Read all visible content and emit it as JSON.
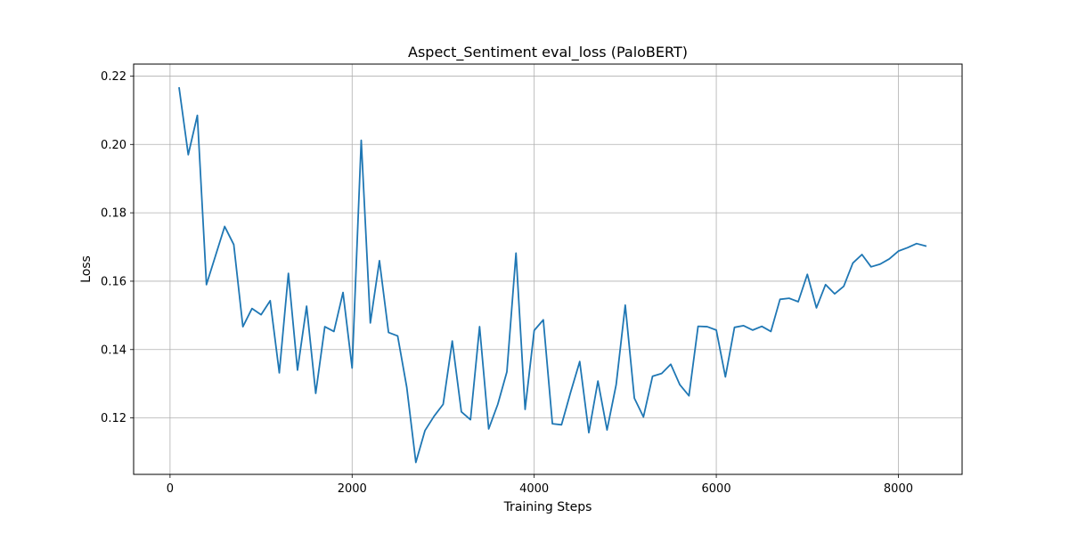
{
  "chart_data": {
    "type": "line",
    "title": "Aspect_Sentiment eval_loss (PaloBERT)",
    "xlabel": "Training Steps",
    "ylabel": "Loss",
    "xlim": [
      -400,
      8700
    ],
    "ylim": [
      0.1035,
      0.2235
    ],
    "xticks": [
      0,
      2000,
      4000,
      6000,
      8000
    ],
    "yticks": [
      0.12,
      0.14,
      0.16,
      0.18,
      0.2,
      0.22
    ],
    "grid": true,
    "line_color": "#1f77b4",
    "series": [
      {
        "name": "eval_loss",
        "x": [
          100,
          200,
          300,
          400,
          500,
          600,
          700,
          800,
          900,
          1000,
          1100,
          1200,
          1300,
          1400,
          1500,
          1600,
          1700,
          1800,
          1900,
          2000,
          2100,
          2200,
          2300,
          2400,
          2500,
          2600,
          2700,
          2800,
          2900,
          3000,
          3100,
          3200,
          3300,
          3400,
          3500,
          3600,
          3700,
          3800,
          3900,
          4000,
          4100,
          4200,
          4300,
          4400,
          4500,
          4600,
          4700,
          4800,
          4900,
          5000,
          5100,
          5200,
          5300,
          5400,
          5500,
          5600,
          5700,
          5800,
          5900,
          6000,
          6100,
          6200,
          6300,
          6400,
          6500,
          6600,
          6700,
          6800,
          6900,
          7000,
          7100,
          7200,
          7300,
          7400,
          7500,
          7600,
          7700,
          7800,
          7900,
          8000,
          8100,
          8200,
          8300
        ],
        "y": [
          0.2165,
          0.197,
          0.2085,
          0.159,
          0.1675,
          0.176,
          0.1707,
          0.1467,
          0.152,
          0.1502,
          0.1543,
          0.1332,
          0.1623,
          0.134,
          0.1527,
          0.1272,
          0.1467,
          0.1453,
          0.1567,
          0.1346,
          0.2012,
          0.1478,
          0.166,
          0.145,
          0.144,
          0.129,
          0.107,
          0.1163,
          0.1205,
          0.124,
          0.1425,
          0.1218,
          0.1195,
          0.1467,
          0.1168,
          0.124,
          0.1335,
          0.1682,
          0.1225,
          0.1456,
          0.1487,
          0.1183,
          0.118,
          0.1275,
          0.1365,
          0.1157,
          0.1308,
          0.1165,
          0.1297,
          0.153,
          0.1258,
          0.1203,
          0.1322,
          0.133,
          0.1357,
          0.1297,
          0.1265,
          0.1468,
          0.1467,
          0.1457,
          0.132,
          0.1465,
          0.147,
          0.1457,
          0.1468,
          0.1453,
          0.1547,
          0.155,
          0.154,
          0.162,
          0.1522,
          0.159,
          0.1563,
          0.1585,
          0.1653,
          0.1678,
          0.1642,
          0.165,
          0.1665,
          0.1688,
          0.1698,
          0.171,
          0.1703
        ]
      }
    ]
  }
}
